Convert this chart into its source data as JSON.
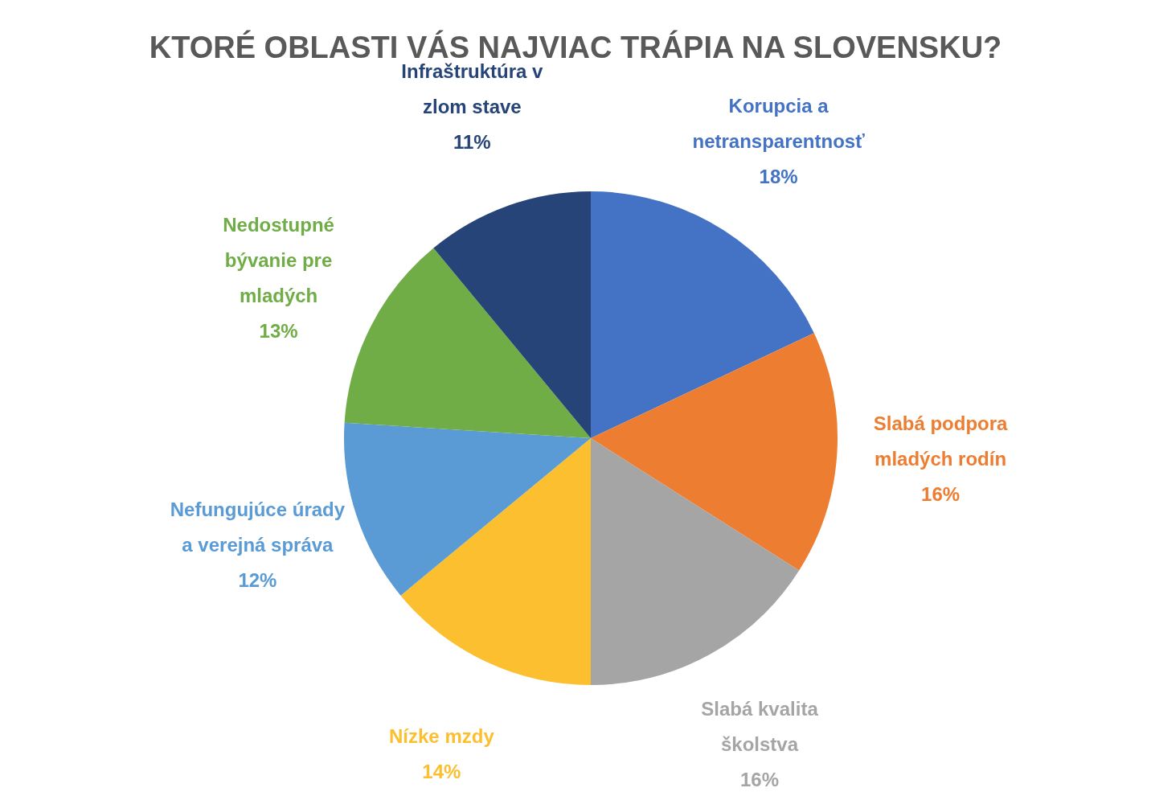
{
  "chart_data": {
    "type": "pie",
    "title": "KTORÉ OBLASTI VÁS NAJVIAC TRÁPIA NA SLOVENSKU?",
    "categories": [
      "Korupcia a netransparentnosť",
      "Slabá podpora mladých rodín",
      "Slabá kvalita školstva",
      "Nízke mzdy",
      "Nefungujúce úrady a verejná správa",
      "Nedostupné bývanie pre mladých",
      "Infraštruktúra v zlom stave"
    ],
    "values": [
      18,
      16,
      16,
      14,
      12,
      13,
      11
    ],
    "value_labels": [
      "18%",
      "16%",
      "16%",
      "14%",
      "12%",
      "13%",
      "11%"
    ],
    "colors": [
      "#4472c4",
      "#ed7d31",
      "#a5a5a5",
      "#fbbf2f",
      "#5b9bd5",
      "#70ad47",
      "#264478"
    ],
    "legend": false
  }
}
